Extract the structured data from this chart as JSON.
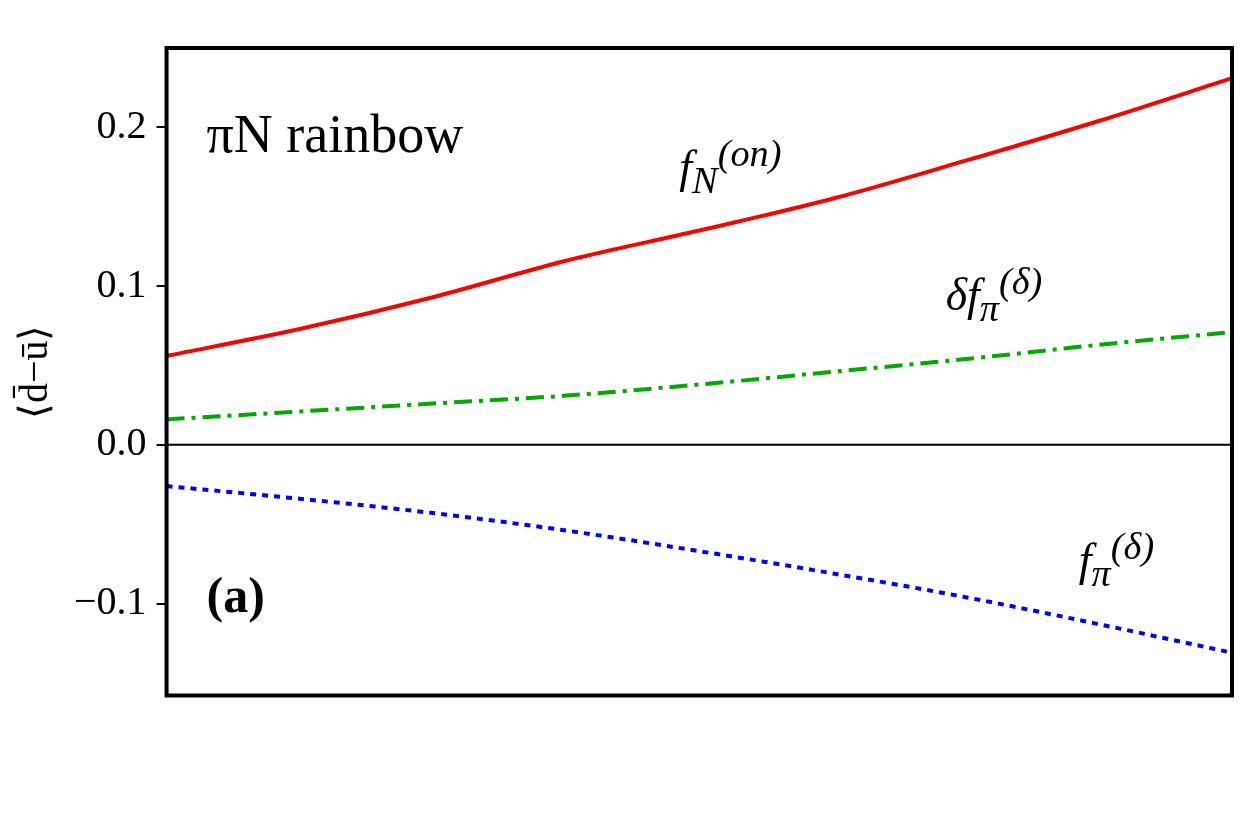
{
  "chart_data": {
    "type": "line",
    "ylabel": "⟨d̄−ū⟩",
    "categories": [
      null,
      null,
      null,
      null,
      null,
      null,
      null,
      null,
      null
    ],
    "ylim": [
      -0.158,
      0.25
    ],
    "yticks": [
      {
        "value": -0.1,
        "label": "−0.1"
      },
      {
        "value": 0,
        "label": "0.0"
      },
      0.1,
      0.2
    ],
    "series": [
      {
        "name": "f$_{N}$$^{(on)}$",
        "color": "#ff0000",
        "line_style": "solid",
        "values": [
          0.056,
          0.073,
          0.093,
          0.116,
          0.135,
          0.155,
          0.179,
          0.204,
          0.231
        ]
      },
      {
        "name": "δf$_{π}$$^{(δ)}$",
        "color": "#00aa00",
        "line_style": "dashed",
        "values": [
          0.016,
          0.021,
          0.026,
          0.031,
          0.038,
          0.046,
          0.054,
          0.063,
          0.071
        ]
      },
      {
        "name": "f$_{π}$$^{(δ)}$",
        "color": "#0000ff",
        "line_style": "dotted",
        "values": [
          -0.026,
          -0.034,
          -0.043,
          -0.054,
          -0.067,
          -0.081,
          -0.096,
          -0.113,
          -0.131
        ]
      }
    ],
    "ref_lines": [
      {
        "axis": "y",
        "value": 0,
        "color": "#000000"
      }
    ],
    "annotations": [
      "πN rainbow",
      "(a)"
    ],
    "grid": false,
    "legend": false,
    "marker": "none"
  }
}
